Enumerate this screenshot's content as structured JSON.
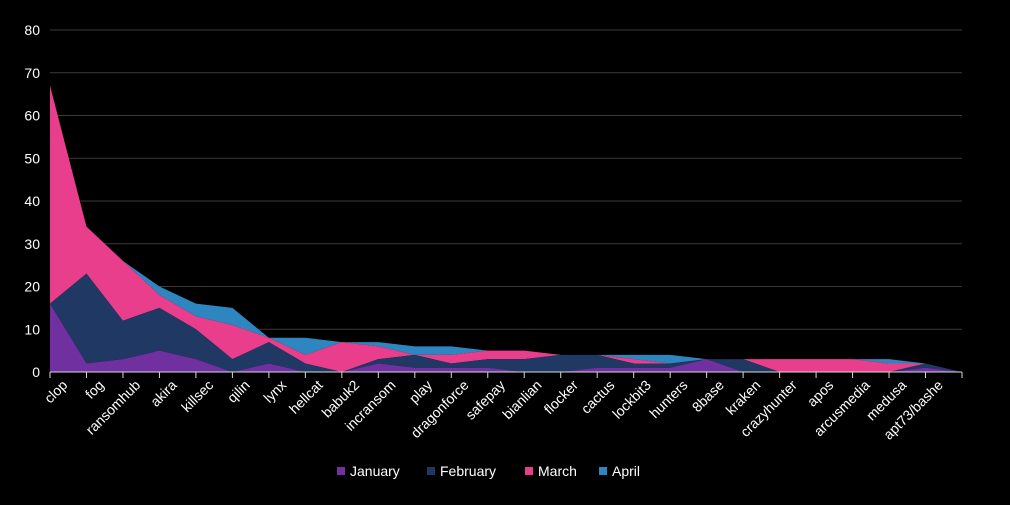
{
  "chart_data": {
    "type": "area",
    "stacked": true,
    "categories": [
      "clop",
      "fog",
      "ransomhub",
      "akira",
      "killsec",
      "qilin",
      "lynx",
      "hellcat",
      "babuk2",
      "incransom",
      "play",
      "dragonforce",
      "safepay",
      "bianlian",
      "flocker",
      "cactus",
      "lockbit3",
      "hunters",
      "8base",
      "kraken",
      "crazyhunter",
      "apos",
      "arcusmedia",
      "medusa",
      "apt73/bashe",
      ""
    ],
    "series": [
      {
        "name": "January",
        "color": "#7030a0",
        "values": [
          16,
          2,
          3,
          5,
          3,
          0,
          2,
          0,
          0,
          2,
          1,
          1,
          1,
          0,
          0,
          1,
          1,
          1,
          3,
          0,
          0,
          0,
          0,
          0,
          1,
          0
        ]
      },
      {
        "name": "February",
        "color": "#1f3864",
        "values": [
          0,
          21,
          9,
          10,
          7,
          3,
          5,
          2,
          0,
          1,
          3,
          1,
          2,
          3,
          4,
          3,
          1,
          1,
          0,
          3,
          0,
          0,
          0,
          0,
          1,
          0
        ]
      },
      {
        "name": "March",
        "color": "#e83e8c",
        "values": [
          51,
          11,
          14,
          3,
          3,
          8,
          1,
          2,
          7,
          3,
          0,
          2,
          2,
          2,
          0,
          0,
          1,
          0,
          0,
          0,
          3,
          3,
          3,
          2,
          0,
          0
        ]
      },
      {
        "name": "April",
        "color": "#2e86c1",
        "values": [
          0,
          0,
          0,
          2,
          3,
          4,
          0,
          4,
          0,
          1,
          2,
          2,
          0,
          0,
          0,
          0,
          1,
          2,
          0,
          0,
          0,
          0,
          0,
          1,
          0,
          0
        ]
      }
    ],
    "ylim": [
      0,
      80
    ],
    "yticks": [
      0,
      10,
      20,
      30,
      40,
      50,
      60,
      70,
      80
    ],
    "grid": true,
    "legend_position": "bottom"
  }
}
